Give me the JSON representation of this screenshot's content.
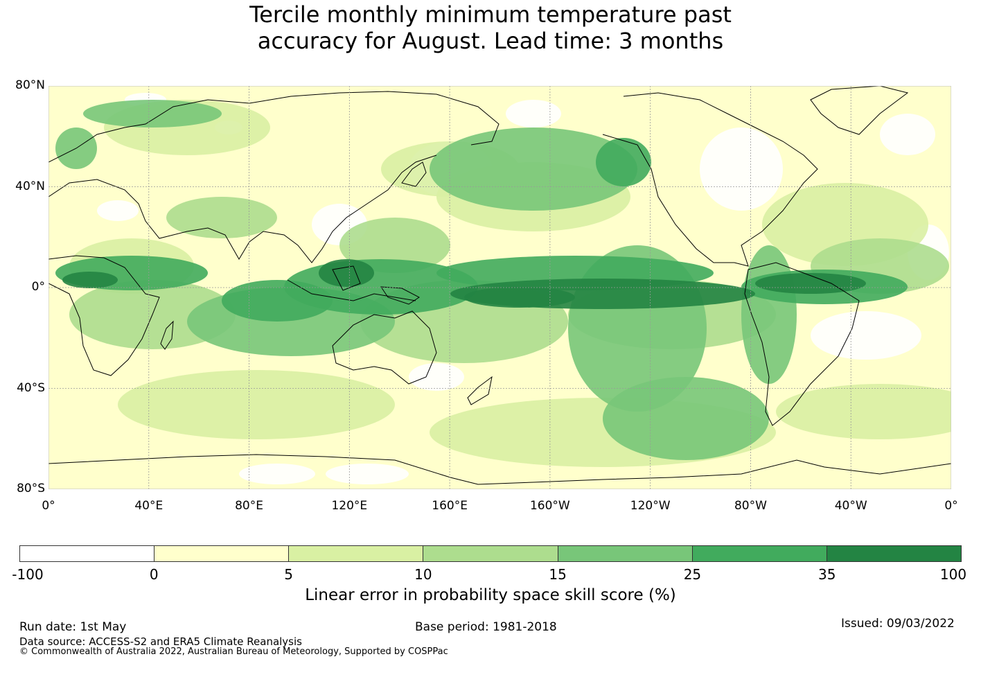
{
  "title_line1": "Tercile monthly minimum temperature past",
  "title_line2": "accuracy for August. Lead time: 3 months",
  "map": {
    "lat_labels": [
      {
        "text": "80°N",
        "lat": 80
      },
      {
        "text": "40°N",
        "lat": 40
      },
      {
        "text": "0°",
        "lat": 0
      },
      {
        "text": "40°S",
        "lat": -40
      },
      {
        "text": "80°S",
        "lat": -80
      }
    ],
    "lon_labels": [
      {
        "text": "0°",
        "lon": 0
      },
      {
        "text": "40°E",
        "lon": 40
      },
      {
        "text": "80°E",
        "lon": 80
      },
      {
        "text": "120°E",
        "lon": 120
      },
      {
        "text": "160°E",
        "lon": 160
      },
      {
        "text": "160°W",
        "lon": 200
      },
      {
        "text": "120°W",
        "lon": 240
      },
      {
        "text": "80°W",
        "lon": 280
      },
      {
        "text": "40°W",
        "lon": 320
      },
      {
        "text": "0°",
        "lon": 360
      }
    ],
    "lon_range": [
      0,
      360
    ],
    "lat_range": [
      -80,
      80
    ]
  },
  "colorbar": {
    "ticks": [
      "-100",
      "0",
      "5",
      "10",
      "15",
      "25",
      "35",
      "100"
    ],
    "colors": [
      "#ffffff",
      "#ffffcc",
      "#d9f0a3",
      "#addd8e",
      "#78c679",
      "#41ab5d",
      "#238443"
    ],
    "label": "Linear error in probability space skill score (%)"
  },
  "footer": {
    "run_date": "Run date: 1st May",
    "base_period": "Base period: 1981-2018",
    "issued": "Issued: 09/03/2022",
    "data_source": "Data source: ACCESS-S2 and ERA5 Climate Reanalysis",
    "copyright": "© Commonwealth of Australia 2022, Australian Bureau of Meteorology, Supported by COSPPac"
  }
}
